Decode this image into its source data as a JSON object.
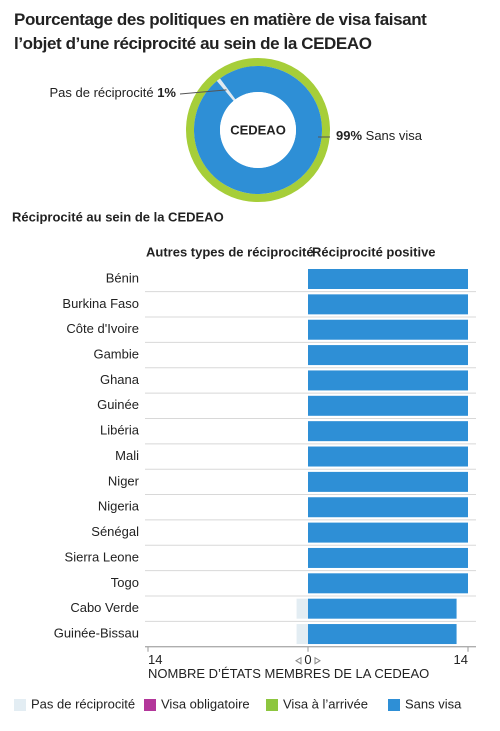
{
  "chart_data": [
    {
      "type": "donut",
      "title": "Pourcentage des politiques en matière de visa faisant l’objet d’une réciprocité au sein de la CEDEAO",
      "center_label": "CEDEAO",
      "categories": [
        "Pas de réciprocité",
        "Sans visa"
      ],
      "values": [
        1,
        99
      ],
      "value_labels": [
        "1%",
        "99%"
      ],
      "colors": [
        "#dfe9f0",
        "#2e8fd6"
      ],
      "ring_color": "#a6ce39"
    },
    {
      "type": "diverging_bar",
      "title": "Réciprocité au sein de la CEDEAO",
      "left_header": "Autres types de réciprocité",
      "right_header": "Réciprocité positive",
      "categories": [
        "Bénin",
        "Burkina Faso",
        "Côte d'Ivoire",
        "Gambie",
        "Ghana",
        "Guinée",
        "Libéria",
        "Mali",
        "Niger",
        "Nigeria",
        "Sénégal",
        "Sierra Leone",
        "Togo",
        "Cabo Verde",
        "Guinée-Bissau"
      ],
      "series": [
        {
          "name": "Pas de réciprocité",
          "color": "#e3edf3",
          "side": "left",
          "values": [
            0,
            0,
            0,
            0,
            0,
            0,
            0,
            0,
            0,
            0,
            0,
            0,
            0,
            1,
            1
          ]
        },
        {
          "name": "Visa obligatoire",
          "color": "#b3369a",
          "side": "left",
          "values": [
            0,
            0,
            0,
            0,
            0,
            0,
            0,
            0,
            0,
            0,
            0,
            0,
            0,
            0,
            0
          ]
        },
        {
          "name": "Visa à l’arrivée",
          "color": "#8dc63f",
          "side": "right",
          "values": [
            0,
            0,
            0,
            0,
            0,
            0,
            0,
            0,
            0,
            0,
            0,
            0,
            0,
            0,
            0
          ]
        },
        {
          "name": "Sans visa",
          "color": "#2e8fd6",
          "side": "right",
          "values": [
            14,
            14,
            14,
            14,
            14,
            14,
            14,
            14,
            14,
            14,
            14,
            14,
            14,
            13,
            13
          ]
        }
      ],
      "xlim": [
        -14,
        14
      ],
      "xticks": [
        {
          "value": -14,
          "label": "14"
        },
        0,
        14
      ],
      "xlabel": "NOMBRE D’ÉTATS MEMBRES DE LA CEDEAO"
    }
  ]
}
